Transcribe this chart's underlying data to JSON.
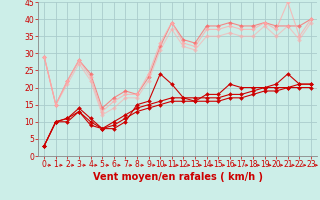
{
  "xlabel": "Vent moyen/en rafales ( km/h )",
  "background_color": "#cceee8",
  "grid_color": "#aacccc",
  "xlim": [
    -0.5,
    23.5
  ],
  "ylim": [
    0,
    45
  ],
  "xticks": [
    0,
    1,
    2,
    3,
    4,
    5,
    6,
    7,
    8,
    9,
    10,
    11,
    12,
    13,
    14,
    15,
    16,
    17,
    18,
    19,
    20,
    21,
    22,
    23
  ],
  "yticks": [
    0,
    5,
    10,
    15,
    20,
    25,
    30,
    35,
    40,
    45
  ],
  "series": [
    {
      "color": "#cc0000",
      "alpha": 1.0,
      "linewidth": 0.8,
      "marker": "D",
      "markersize": 2,
      "x": [
        0,
        1,
        2,
        3,
        4,
        5,
        6,
        7,
        8,
        9,
        10,
        11,
        12,
        13,
        14,
        15,
        16,
        17,
        18,
        19,
        20,
        21,
        22,
        23
      ],
      "y": [
        3,
        10,
        10,
        13,
        9,
        8,
        8,
        10,
        15,
        16,
        24,
        21,
        17,
        16,
        18,
        18,
        21,
        20,
        20,
        20,
        21,
        24,
        21,
        21
      ]
    },
    {
      "color": "#cc0000",
      "alpha": 1.0,
      "linewidth": 0.8,
      "marker": "D",
      "markersize": 2,
      "x": [
        0,
        1,
        2,
        3,
        4,
        5,
        6,
        7,
        8,
        9,
        10,
        11,
        12,
        13,
        14,
        15,
        16,
        17,
        18,
        19,
        20,
        21,
        22,
        23
      ],
      "y": [
        3,
        10,
        11,
        14,
        11,
        8,
        10,
        12,
        14,
        15,
        16,
        17,
        17,
        17,
        17,
        17,
        18,
        18,
        19,
        20,
        20,
        20,
        21,
        21
      ]
    },
    {
      "color": "#cc0000",
      "alpha": 1.0,
      "linewidth": 0.8,
      "marker": "D",
      "markersize": 2,
      "x": [
        0,
        1,
        2,
        3,
        4,
        5,
        6,
        7,
        8,
        9,
        10,
        11,
        12,
        13,
        14,
        15,
        16,
        17,
        18,
        19,
        20,
        21,
        22,
        23
      ],
      "y": [
        3,
        10,
        11,
        13,
        10,
        8,
        9,
        11,
        13,
        14,
        15,
        16,
        16,
        16,
        16,
        16,
        17,
        17,
        18,
        19,
        19,
        20,
        20,
        20
      ]
    },
    {
      "color": "#ff6666",
      "alpha": 0.75,
      "linewidth": 0.8,
      "marker": "D",
      "markersize": 2,
      "x": [
        0,
        1,
        2,
        3,
        4,
        5,
        6,
        7,
        8,
        9,
        10,
        11,
        12,
        13,
        14,
        15,
        16,
        17,
        18,
        19,
        20,
        21,
        22,
        23
      ],
      "y": [
        29,
        15,
        22,
        28,
        24,
        14,
        17,
        19,
        18,
        23,
        32,
        39,
        34,
        33,
        38,
        38,
        39,
        38,
        38,
        39,
        38,
        38,
        38,
        40
      ]
    },
    {
      "color": "#ffaaaa",
      "alpha": 0.75,
      "linewidth": 0.8,
      "marker": "D",
      "markersize": 2,
      "x": [
        0,
        1,
        2,
        3,
        4,
        5,
        6,
        7,
        8,
        9,
        10,
        11,
        12,
        13,
        14,
        15,
        16,
        17,
        18,
        19,
        20,
        21,
        22,
        23
      ],
      "y": [
        29,
        15,
        22,
        28,
        23,
        13,
        16,
        18,
        18,
        24,
        33,
        39,
        33,
        32,
        37,
        37,
        38,
        37,
        37,
        39,
        37,
        45,
        35,
        40
      ]
    },
    {
      "color": "#ffaaaa",
      "alpha": 0.6,
      "linewidth": 0.8,
      "marker": "D",
      "markersize": 2,
      "x": [
        0,
        1,
        2,
        3,
        4,
        5,
        6,
        7,
        8,
        9,
        10,
        11,
        12,
        13,
        14,
        15,
        16,
        17,
        18,
        19,
        20,
        21,
        22,
        23
      ],
      "y": [
        29,
        15,
        21,
        27,
        22,
        12,
        14,
        17,
        17,
        22,
        31,
        37,
        32,
        31,
        35,
        35,
        36,
        35,
        35,
        38,
        35,
        38,
        34,
        39
      ]
    }
  ],
  "xlabel_color": "#cc0000",
  "xlabel_fontsize": 7,
  "tick_color": "#cc0000",
  "tick_fontsize": 5.5,
  "axis_color": "#cc0000",
  "spine_color": "#888888"
}
